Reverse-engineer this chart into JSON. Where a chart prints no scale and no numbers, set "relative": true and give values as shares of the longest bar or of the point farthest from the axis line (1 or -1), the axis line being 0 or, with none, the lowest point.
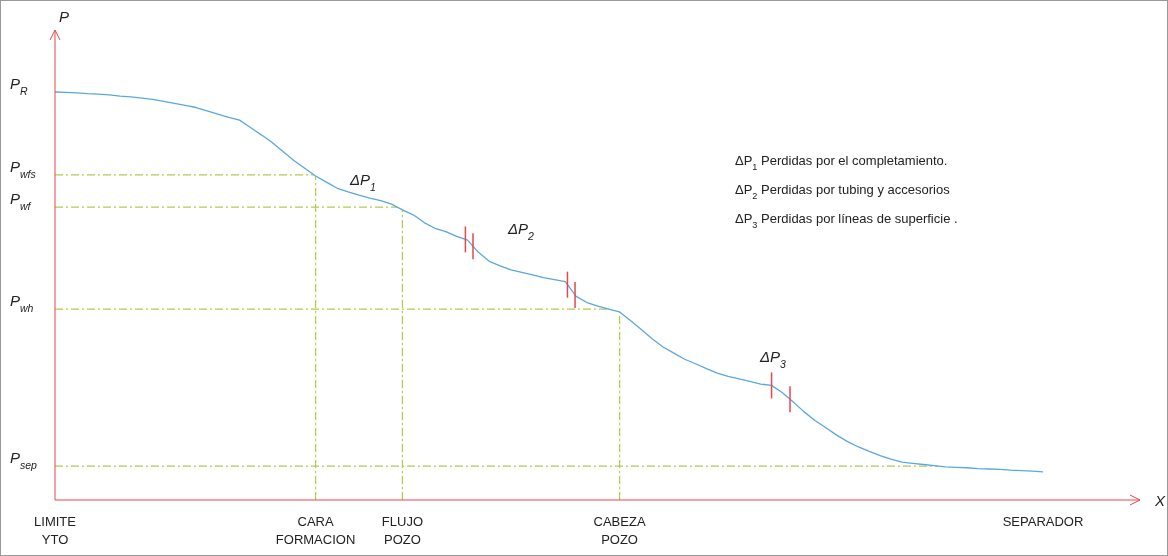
{
  "chart_data": {
    "type": "line",
    "relative": true,
    "xlabel": "X",
    "ylabel": "P",
    "categories": [
      "LIMITE YTO",
      null,
      null,
      null,
      null,
      null,
      null,
      null,
      null,
      null,
      null,
      null,
      null,
      null,
      null,
      null,
      null,
      null,
      null,
      null,
      null,
      null,
      null,
      null,
      "CARA FORMACION",
      null,
      null,
      null,
      null,
      null,
      null,
      null,
      "FLUJO POZO",
      null,
      null,
      null,
      null,
      null,
      null,
      null,
      null,
      null,
      null,
      null,
      null,
      null,
      null,
      null,
      null,
      null,
      null,
      null,
      "CABEZA POZO",
      null,
      null,
      null,
      null,
      null,
      null,
      null,
      null,
      null,
      null,
      null,
      null,
      null,
      null,
      null,
      null,
      null,
      null,
      null,
      null,
      null,
      null,
      null,
      null,
      null,
      null,
      null,
      null,
      null,
      null,
      null,
      null,
      null,
      null,
      null,
      null,
      null,
      null,
      "SEPARADOR"
    ],
    "series": [
      {
        "color": "#5aa8e0",
        "values": [
          1,
          0.999,
          0.998,
          0.996,
          0.995,
          0.993,
          0.99,
          0.988,
          0.985,
          0.982,
          0.977,
          0.972,
          0.967,
          0.962,
          0.954,
          0.946,
          0.938,
          0.931,
          0.913,
          0.895,
          0.876,
          0.854,
          0.832,
          0.813,
          0.794,
          0.779,
          0.764,
          0.755,
          0.747,
          0.74,
          0.734,
          0.725,
          0.711,
          0.699,
          0.68,
          0.666,
          0.658,
          0.646,
          0.637,
          0.607,
          0.585,
          0.574,
          0.564,
          0.558,
          0.552,
          0.545,
          0.54,
          0.535,
          0.499,
          0.484,
          0.475,
          0.468,
          0.461,
          0.44,
          0.418,
          0.395,
          0.375,
          0.36,
          0.345,
          0.334,
          0.322,
          0.311,
          0.303,
          0.297,
          0.291,
          0.284,
          0.281,
          0.263,
          0.24,
          0.216,
          0.195,
          0.177,
          0.159,
          0.143,
          0.13,
          0.119,
          0.109,
          0.1,
          0.093,
          0.09,
          0.087,
          0.084,
          0.081,
          0.08,
          0.079,
          0.077,
          0.076,
          0.075,
          0.073,
          0.072,
          0.071,
          0.069
        ]
      }
    ],
    "ref_lines": [
      {
        "axis": "y",
        "value": 0.797,
        "label": "P$_{wfs}$",
        "color": "#b5c94a",
        "line_style": "dashed"
      },
      {
        "axis": "y",
        "value": 0.718,
        "label": "P$_{wf}$",
        "color": "#b5c94a",
        "line_style": "dashed"
      },
      {
        "axis": "y",
        "value": 0.468,
        "label": "P$_{wh}$",
        "color": "#b5c94a",
        "line_style": "dashed"
      },
      {
        "axis": "y",
        "value": 0.083,
        "label": "P$_{sep}$",
        "color": "#b5c94a",
        "line_style": "dashed"
      },
      {
        "axis": "x",
        "value": "CARA FORMACION",
        "color": "#b5c94a",
        "line_style": "dashed"
      },
      {
        "axis": "x",
        "value": "FLUJO POZO",
        "color": "#b5c94a",
        "line_style": "dashed"
      },
      {
        "axis": "x",
        "value": "CABEZA POZO",
        "color": "#b5c94a",
        "line_style": "dashed"
      }
    ],
    "annotations": [
      {
        "text": "P$_{R}$",
        "x": "LIMITE YTO",
        "y": 1
      },
      "ΔP$_{1}$",
      "ΔP$_{2}$",
      "ΔP$_{3}$",
      "ΔP$_{1}$  Perdidas por el completamiento.",
      "ΔP$_{2}$  Perdidas por tubing y accesorios",
      "ΔP$_{3}$  Perdidas  por líneas de superficie ."
    ],
    "marker": "none",
    "line_style": "solid"
  }
}
